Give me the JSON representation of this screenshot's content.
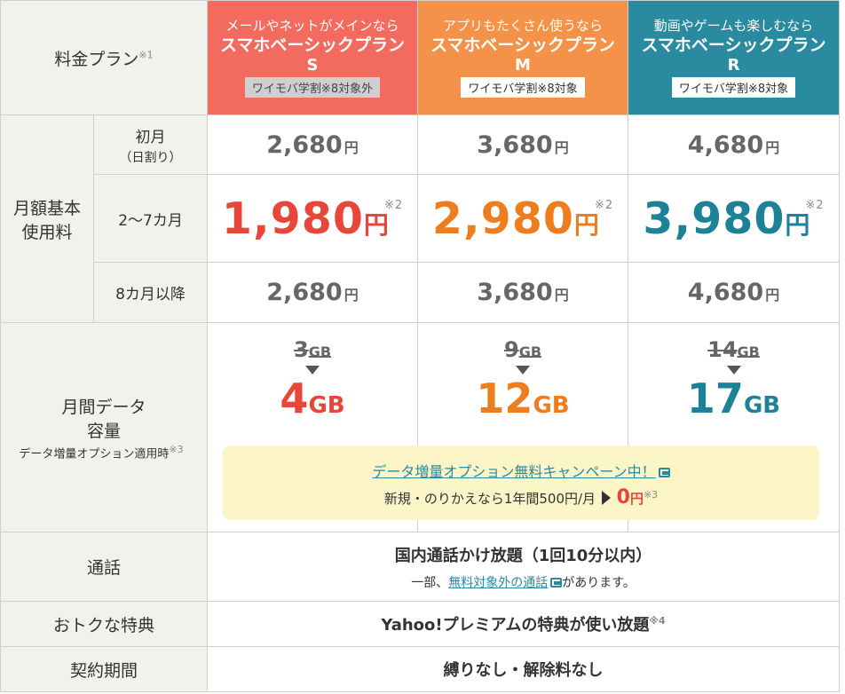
{
  "header": {
    "label": "料金プラン",
    "label_note": "※1",
    "plans": [
      {
        "sub": "メールやネットがメインなら",
        "name": "スマホベーシックプラン",
        "size": "S",
        "tag": "ワイモバ学割※8対象外"
      },
      {
        "sub": "アプリもたくさん使うなら",
        "name": "スマホベーシックプラン",
        "size": "M",
        "tag": "ワイモバ学割※8対象"
      },
      {
        "sub": "動画やゲームも楽しむなら",
        "name": "スマホベーシックプラン",
        "size": "R",
        "tag": "ワイモバ学割※8対象"
      }
    ],
    "colors": {
      "s": "#f26b5e",
      "m": "#f4924a",
      "r": "#2a8aa0"
    }
  },
  "monthly": {
    "label_line1": "月額基本",
    "label_line2": "使用料",
    "first_month": {
      "label": "初月",
      "sub": "（日割り）",
      "prices": [
        "2,680",
        "3,680",
        "4,680"
      ]
    },
    "months_2_7": {
      "label": "2〜7カ月",
      "prices": [
        "1,980",
        "2,980",
        "3,980"
      ],
      "note": "※2"
    },
    "month_8_plus": {
      "label": "8カ月以降",
      "prices": [
        "2,680",
        "3,680",
        "4,680"
      ]
    },
    "yen": "円"
  },
  "data": {
    "label_line1": "月間データ",
    "label_line2": "容量",
    "label_note": "データ増量オプション適用時",
    "label_note_mark": "※3",
    "old": [
      "3",
      "9",
      "14"
    ],
    "new": [
      "4",
      "12",
      "17"
    ],
    "unit": "GB",
    "campaign": {
      "link": "データ増量オプション無料キャンペーン中！",
      "line_prefix": "新規・のりかえなら1年間500円/月",
      "zero_value": "0",
      "zero_unit": "円",
      "zero_note": "※3"
    }
  },
  "call": {
    "label": "通話",
    "main": "国内通話かけ放題（1回10分以内）",
    "note_prefix": "一部、",
    "note_link": "無料対象外の通話",
    "note_suffix": "があります。"
  },
  "perks": {
    "label": "おトクな特典",
    "main": "Yahoo!プレミアムの特典が使い放題",
    "note": "※4"
  },
  "contract": {
    "label": "契約期間",
    "main": "縛りなし・解除料なし"
  }
}
